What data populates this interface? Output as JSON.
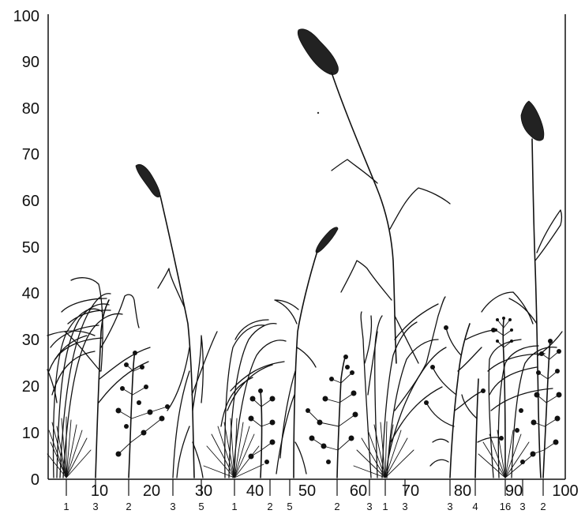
{
  "y_ticks": [
    "0",
    "10",
    "20",
    "30",
    "40",
    "50",
    "60",
    "70",
    "80",
    "90",
    "100"
  ],
  "x_ticks": [
    "10",
    "20",
    "30",
    "40",
    "50",
    "60",
    "70",
    "80",
    "90",
    "100"
  ],
  "species_numbers": [
    "1",
    "3",
    "2",
    "3",
    "5",
    "1",
    "2",
    "5",
    "2",
    "3",
    "1",
    "3",
    "3",
    "4",
    "16",
    "3",
    "2"
  ]
}
